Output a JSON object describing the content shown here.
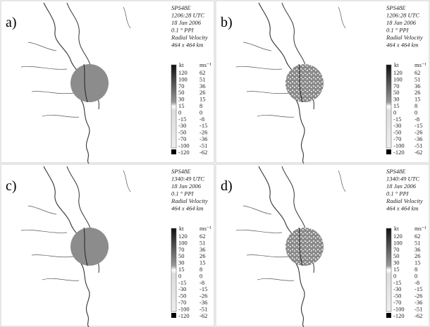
{
  "panels": [
    {
      "label": "a)",
      "info": [
        "SPS48E",
        "1206:28 UTC",
        "18 Jan 2006",
        "0.1 ° PPI",
        "Radial Velocity",
        "464 x 464 km"
      ]
    },
    {
      "label": "b)",
      "info": [
        "SPS48E",
        "1206:28 UTC",
        "18 Jan 2006",
        "0.1 ° PPI",
        "Radial Velocity",
        "464 x 464 km"
      ]
    },
    {
      "label": "c)",
      "info": [
        "SPS48E",
        "1340:49 UTC",
        "18 Jan 2006",
        "0.1 ° PPI",
        "Radial Velocity",
        "464 x 464 km"
      ]
    },
    {
      "label": "d)",
      "info": [
        "SPS48E",
        "1340:49 UTC",
        "18 Jan 2006",
        "0.1 ° PPI",
        "Radial Velocity",
        "464 x 464 km"
      ]
    }
  ],
  "scale": {
    "unit_left": "kt",
    "unit_right": "ms⁻¹",
    "kt": [
      "120",
      "100",
      "70",
      "50",
      "30",
      "15",
      "0",
      "-15",
      "-30",
      "-50",
      "-70",
      "-100",
      "-120"
    ],
    "ms": [
      "62",
      "51",
      "36",
      "26",
      "15",
      "8",
      "0",
      "-8",
      "-15",
      "-26",
      "-36",
      "-51",
      "-62"
    ]
  }
}
